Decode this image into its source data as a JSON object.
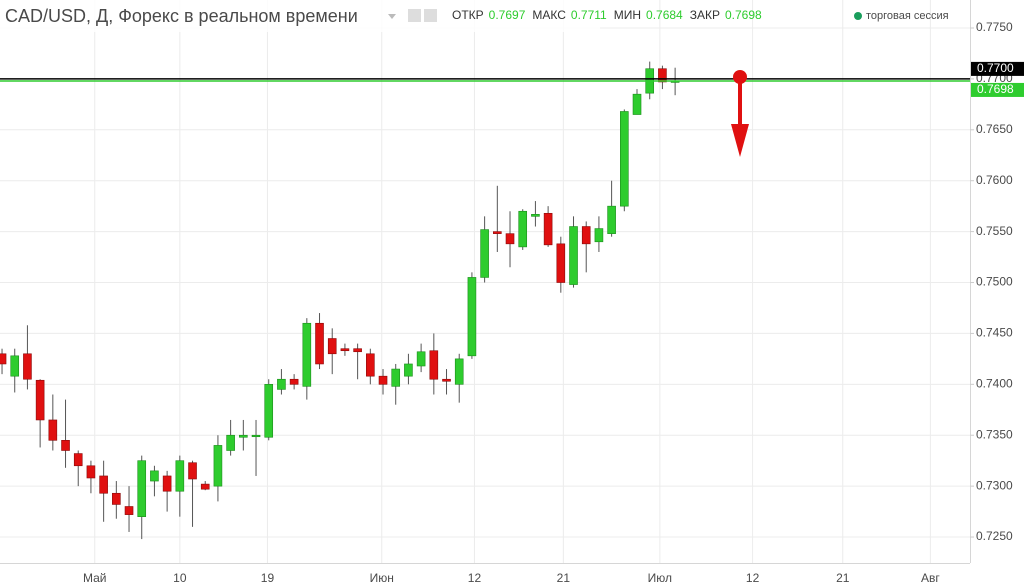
{
  "chart_data": {
    "type": "candlestick",
    "title": "CAD/USD, Д, Форекс в реальном времени",
    "ohlc_header": [
      {
        "label": "ОТКР",
        "value": 0.7697
      },
      {
        "label": "МАКС",
        "value": 0.7711
      },
      {
        "label": "МИН",
        "value": 0.7684
      },
      {
        "label": "ЗАКР",
        "value": 0.7698
      }
    ],
    "session_label": "торговая сессия",
    "up_color": "#2ecc2e",
    "down_color": "#e01010",
    "grid": true,
    "x": [
      0,
      1,
      2,
      3,
      4,
      5,
      6,
      7,
      8,
      9,
      10,
      11,
      12,
      13,
      14,
      15,
      16,
      17,
      18,
      19,
      20,
      21,
      22,
      23,
      24,
      25,
      26,
      27,
      28,
      29,
      30,
      31,
      32,
      33,
      34,
      35,
      36,
      37,
      38,
      39,
      40,
      41,
      42,
      43,
      44,
      45,
      46,
      47,
      48,
      49,
      50,
      51,
      52,
      53
    ],
    "open": [
      0.743,
      0.7408,
      0.743,
      0.7404,
      0.7365,
      0.7345,
      0.7332,
      0.732,
      0.731,
      0.7293,
      0.728,
      0.727,
      0.7305,
      0.731,
      0.7295,
      0.7323,
      0.7302,
      0.73,
      0.7335,
      0.7348,
      0.735,
      0.7348,
      0.7395,
      0.7405,
      0.7398,
      0.746,
      0.7445,
      0.7435,
      0.7435,
      0.743,
      0.7408,
      0.7398,
      0.7408,
      0.7418,
      0.7433,
      0.7405,
      0.74,
      0.7428,
      0.7505,
      0.755,
      0.7548,
      0.7535,
      0.7565,
      0.7568,
      0.7538,
      0.7498,
      0.7555,
      0.754,
      0.7548,
      0.7575,
      0.7665,
      0.7686,
      0.771,
      0.7697
    ],
    "high": [
      0.7435,
      0.7435,
      0.7458,
      0.7405,
      0.739,
      0.7385,
      0.7335,
      0.7325,
      0.7325,
      0.7305,
      0.73,
      0.733,
      0.732,
      0.7315,
      0.733,
      0.7325,
      0.7305,
      0.735,
      0.7365,
      0.7365,
      0.7365,
      0.7405,
      0.7415,
      0.741,
      0.7465,
      0.747,
      0.7455,
      0.744,
      0.744,
      0.7435,
      0.7415,
      0.742,
      0.743,
      0.744,
      0.745,
      0.7415,
      0.743,
      0.751,
      0.7565,
      0.7595,
      0.757,
      0.7572,
      0.758,
      0.7575,
      0.7545,
      0.7565,
      0.756,
      0.7565,
      0.76,
      0.767,
      0.769,
      0.7717,
      0.7713,
      0.7711
    ],
    "low": [
      0.741,
      0.7392,
      0.7395,
      0.7338,
      0.7335,
      0.7318,
      0.73,
      0.7293,
      0.7265,
      0.7268,
      0.7255,
      0.7248,
      0.729,
      0.7275,
      0.727,
      0.726,
      0.7296,
      0.7285,
      0.733,
      0.7335,
      0.731,
      0.7345,
      0.739,
      0.7395,
      0.7385,
      0.7415,
      0.741,
      0.7428,
      0.7405,
      0.74,
      0.739,
      0.738,
      0.74,
      0.7412,
      0.739,
      0.739,
      0.7382,
      0.7425,
      0.75,
      0.753,
      0.7515,
      0.7532,
      0.7555,
      0.7535,
      0.749,
      0.7495,
      0.751,
      0.753,
      0.7545,
      0.757,
      0.7665,
      0.768,
      0.769,
      0.7684
    ],
    "close": [
      0.742,
      0.7428,
      0.7405,
      0.7365,
      0.7345,
      0.7335,
      0.732,
      0.7308,
      0.7293,
      0.7282,
      0.7272,
      0.7325,
      0.7315,
      0.7295,
      0.7325,
      0.7307,
      0.7297,
      0.734,
      0.735,
      0.735,
      0.735,
      0.74,
      0.7405,
      0.74,
      0.746,
      0.742,
      0.743,
      0.7433,
      0.7432,
      0.7408,
      0.74,
      0.7415,
      0.742,
      0.7432,
      0.7405,
      0.7403,
      0.7425,
      0.7505,
      0.7552,
      0.7548,
      0.7538,
      0.757,
      0.7567,
      0.7537,
      0.75,
      0.7555,
      0.7538,
      0.7553,
      0.7575,
      0.7668,
      0.7685,
      0.771,
      0.7697,
      0.7698
    ],
    "xlim": [
      -0.16,
      76.22
    ],
    "xticks": [
      {
        "value": 7.3,
        "label": "Май"
      },
      {
        "value": 14.0,
        "label": "10"
      },
      {
        "value": 20.9,
        "label": "19"
      },
      {
        "value": 29.9,
        "label": "Июн"
      },
      {
        "value": 37.2,
        "label": "12"
      },
      {
        "value": 44.2,
        "label": "21"
      },
      {
        "value": 51.8,
        "label": "Июл"
      },
      {
        "value": 59.1,
        "label": "12"
      },
      {
        "value": 66.2,
        "label": "21"
      },
      {
        "value": 73.1,
        "label": "Авг"
      }
    ],
    "ylim": [
      0.72245,
      0.77775
    ],
    "yticks": [
      {
        "value": 0.725,
        "label": "0.7250"
      },
      {
        "value": 0.73,
        "label": "0.7300"
      },
      {
        "value": 0.735,
        "label": "0.7350"
      },
      {
        "value": 0.74,
        "label": "0.7400"
      },
      {
        "value": 0.745,
        "label": "0.7450"
      },
      {
        "value": 0.75,
        "label": "0.7500"
      },
      {
        "value": 0.755,
        "label": "0.7550"
      },
      {
        "value": 0.76,
        "label": "0.7600"
      },
      {
        "value": 0.765,
        "label": "0.7650"
      },
      {
        "value": 0.77,
        "label": "0.7700"
      },
      {
        "value": 0.775,
        "label": "0.7750"
      }
    ],
    "price_lines": [
      {
        "value": 0.77,
        "label": "0.7700",
        "color": "#000000"
      },
      {
        "value": 0.7698,
        "label": "0.7698",
        "color": "#2ecc2e"
      }
    ]
  }
}
